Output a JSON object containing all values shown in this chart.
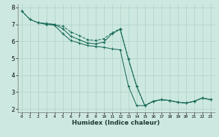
{
  "xlabel": "Humidex (Indice chaleur)",
  "bg_color": "#cde8e0",
  "grid_color": "#b0d4c8",
  "line_color": "#1a6b5a",
  "xlim": [
    -0.5,
    23.5
  ],
  "ylim": [
    1.8,
    8.2
  ],
  "xtick_vals": [
    0,
    1,
    2,
    3,
    4,
    5,
    6,
    7,
    8,
    9,
    10,
    11,
    12,
    13,
    14,
    15,
    16,
    17,
    18,
    19,
    20,
    21,
    22,
    23
  ],
  "ytick_vals": [
    2,
    3,
    4,
    5,
    6,
    7,
    8
  ],
  "curve1_x": [
    0,
    1,
    2,
    3,
    4,
    5,
    6,
    7,
    8,
    9,
    10,
    11,
    12,
    13,
    14,
    15,
    16,
    17,
    18,
    19,
    20,
    21,
    22,
    23
  ],
  "curve1_y": [
    7.8,
    7.3,
    7.1,
    7.05,
    7.0,
    6.9,
    6.55,
    6.35,
    6.1,
    6.05,
    6.15,
    6.5,
    6.75,
    4.95,
    3.35,
    2.2,
    2.45,
    2.55,
    2.5,
    2.4,
    2.35,
    2.45,
    2.65,
    2.55
  ],
  "curve2_x": [
    0,
    1,
    2,
    3,
    4,
    5,
    6,
    7,
    8,
    9,
    10,
    11,
    12,
    13,
    14,
    15,
    16,
    17,
    18,
    19,
    20,
    21,
    22,
    23
  ],
  "curve2_y": [
    7.8,
    7.3,
    7.1,
    7.05,
    7.0,
    6.75,
    6.3,
    6.1,
    5.9,
    5.85,
    5.95,
    6.45,
    6.7,
    4.95,
    3.35,
    2.2,
    2.45,
    2.55,
    2.5,
    2.4,
    2.35,
    2.45,
    2.65,
    2.55
  ],
  "curve3_x": [
    2,
    3,
    4,
    5,
    6,
    7,
    8,
    9,
    10,
    11,
    12,
    13,
    14,
    15,
    16,
    17,
    18,
    19,
    20,
    21,
    22,
    23
  ],
  "curve3_y": [
    7.1,
    7.0,
    6.95,
    6.45,
    6.05,
    5.9,
    5.75,
    5.7,
    5.65,
    5.55,
    5.5,
    3.35,
    2.2,
    2.2,
    2.45,
    2.55,
    2.5,
    2.4,
    2.35,
    2.45,
    2.65,
    2.55
  ],
  "curve1_style": "--",
  "curve2_style": "-",
  "curve3_style": "-"
}
